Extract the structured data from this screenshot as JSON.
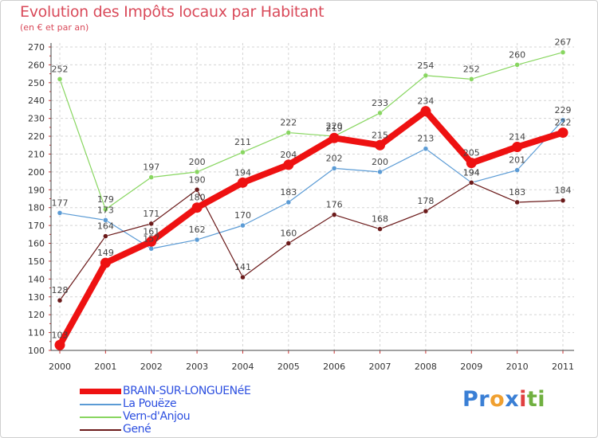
{
  "title": "Evolution des Impôts locaux par Habitant",
  "subtitle": "(en € et par an)",
  "logo": {
    "letters": [
      "P",
      "r",
      "o",
      "x",
      "i",
      "t",
      "i"
    ],
    "colors": [
      "#3a7fd5",
      "#3a7fd5",
      "#f0a030",
      "#3a7fd5",
      "#e04040",
      "#70b040",
      "#70b040"
    ]
  },
  "chart_data": {
    "type": "line",
    "title": "Evolution des Impôts locaux par Habitant",
    "ylabel": "(en € et par an)",
    "x": [
      "2000",
      "2001",
      "2002",
      "2003",
      "2004",
      "2005",
      "2006",
      "2007",
      "2008",
      "2009",
      "2010",
      "2011"
    ],
    "ylim": [
      100,
      270
    ],
    "yticks": [
      "100",
      "110",
      "120",
      "130",
      "140",
      "150",
      "160",
      "170",
      "180",
      "190",
      "200",
      "210",
      "220",
      "230",
      "240",
      "250",
      "260",
      "270"
    ],
    "grid": true,
    "legend": "bottom-left",
    "series": [
      {
        "name": "BRAIN-SUR-LONGUENéE",
        "color": "#ee1111",
        "values": [
          103,
          149,
          161,
          180,
          194,
          204,
          219,
          215,
          234,
          205,
          214,
          222
        ]
      },
      {
        "name": "La Pouëze",
        "color": "#5b9bd5",
        "values": [
          177,
          173,
          157,
          162,
          170,
          183,
          202,
          200,
          213,
          194,
          201,
          229
        ]
      },
      {
        "name": "Vern-d'Anjou",
        "color": "#88d660",
        "values": [
          252,
          179,
          197,
          200,
          211,
          222,
          220,
          233,
          254,
          252,
          260,
          267
        ]
      },
      {
        "name": "Gené",
        "color": "#6b1a1a",
        "values": [
          128,
          164,
          171,
          190,
          141,
          160,
          176,
          168,
          178,
          194,
          183,
          184
        ]
      }
    ]
  }
}
